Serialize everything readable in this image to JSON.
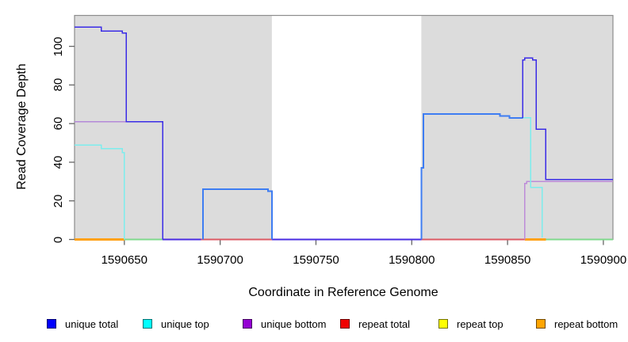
{
  "axes": {
    "xlabel": "Coordinate in Reference Genome",
    "ylabel": "Read Coverage Depth"
  },
  "legend": {
    "items": [
      {
        "label": "unique total",
        "color": "#0000FF"
      },
      {
        "label": "unique top",
        "color": "#00FFFF"
      },
      {
        "label": "unique bottom",
        "color": "#9400D3"
      },
      {
        "label": "repeat total",
        "color": "#F00000"
      },
      {
        "label": "repeat top",
        "color": "#FFFF00"
      },
      {
        "label": "repeat bottom",
        "color": "#FFA500"
      }
    ]
  },
  "chart_data": {
    "type": "line",
    "step": true,
    "title": "",
    "xlabel": "Coordinate in Reference Genome",
    "ylabel": "Read Coverage Depth",
    "xlim": [
      1590624,
      1590905
    ],
    "ylim": [
      0,
      116
    ],
    "xticks": [
      1590650,
      1590700,
      1590750,
      1590800,
      1590850,
      1590900
    ],
    "yticks": [
      0,
      20,
      40,
      60,
      80,
      100
    ],
    "grid": false,
    "legend_position": "bottom",
    "shade_color": "#DCDCDC",
    "frame_color": "#8C8C8C",
    "tick_color": "#666666",
    "shaded_regions": [
      {
        "from": 1590624,
        "to": 1590727
      },
      {
        "from": 1590805,
        "to": 1590905
      }
    ],
    "series": [
      {
        "name": "unique total",
        "color": "#0000FF",
        "step_points": [
          [
            1590624,
            110
          ],
          [
            1590638,
            108
          ],
          [
            1590649,
            107
          ],
          [
            1590651,
            61
          ],
          [
            1590670,
            0
          ],
          [
            1590691,
            26
          ],
          [
            1590725,
            25
          ],
          [
            1590727,
            0
          ],
          [
            1590805,
            37
          ],
          [
            1590807,
            65
          ],
          [
            1590846,
            64
          ],
          [
            1590851,
            63
          ],
          [
            1590858,
            93
          ],
          [
            1590859,
            94
          ],
          [
            1590863,
            93
          ],
          [
            1590865,
            57
          ],
          [
            1590870,
            31
          ],
          [
            1590905,
            31
          ]
        ]
      },
      {
        "name": "unique top",
        "color": "#00FFFF",
        "step_points": [
          [
            1590624,
            49
          ],
          [
            1590638,
            47
          ],
          [
            1590649,
            45
          ],
          [
            1590650,
            0
          ],
          [
            1590691,
            26
          ],
          [
            1590727,
            0
          ],
          [
            1590805,
            37
          ],
          [
            1590807,
            65
          ],
          [
            1590846,
            64
          ],
          [
            1590851,
            63
          ],
          [
            1590862,
            27
          ],
          [
            1590868,
            0
          ],
          [
            1590905,
            0
          ]
        ]
      },
      {
        "name": "unique bottom",
        "color": "#9400D3",
        "step_points": [
          [
            1590624,
            61
          ],
          [
            1590670,
            0
          ],
          [
            1590859,
            30
          ],
          [
            1590905,
            30
          ]
        ]
      },
      {
        "name": "repeat total",
        "color": "#F00000",
        "step_points": [
          [
            1590624,
            0
          ],
          [
            1590905,
            0
          ]
        ]
      },
      {
        "name": "repeat top",
        "color": "#FFFF00",
        "step_points": [
          [
            1590624,
            0
          ],
          [
            1590905,
            0
          ]
        ]
      },
      {
        "name": "repeat bottom",
        "color": "#FFA500",
        "step_points": [
          [
            1590624,
            0
          ],
          [
            1590905,
            0
          ]
        ]
      }
    ],
    "visible_polylines": [
      {
        "name": "baseline-orange-left",
        "color": "#FFA217",
        "width": 3,
        "points": [
          [
            1590624,
            0
          ],
          [
            1590650,
            0
          ]
        ]
      },
      {
        "name": "baseline-green-left",
        "color": "#7FD98C",
        "width": 2,
        "points": [
          [
            1590650,
            0
          ],
          [
            1590670,
            0
          ]
        ]
      },
      {
        "name": "baseline-blueviolet-left",
        "color": "#4A2BE2",
        "width": 2,
        "points": [
          [
            1590670,
            0
          ],
          [
            1590690,
            0
          ]
        ]
      },
      {
        "name": "baseline-red-left",
        "color": "#DC5A64",
        "width": 2,
        "points": [
          [
            1590690,
            0
          ],
          [
            1590727,
            0
          ]
        ]
      },
      {
        "name": "baseline-blueviolet-gap",
        "color": "#4A2BE2",
        "width": 2,
        "points": [
          [
            1590727,
            0
          ],
          [
            1590805,
            0
          ]
        ]
      },
      {
        "name": "baseline-red-right",
        "color": "#DC5A64",
        "width": 2,
        "points": [
          [
            1590805,
            0
          ],
          [
            1590859,
            0
          ]
        ]
      },
      {
        "name": "baseline-orange-right",
        "color": "#FFA217",
        "width": 3,
        "points": [
          [
            1590859,
            0
          ],
          [
            1590870,
            0
          ]
        ]
      },
      {
        "name": "baseline-green-right",
        "color": "#7FD98C",
        "width": 2,
        "points": [
          [
            1590870,
            0
          ],
          [
            1590905,
            0
          ]
        ]
      },
      {
        "name": "unique-bottom-left",
        "color": "#B389D8",
        "width": 1.5,
        "points": [
          [
            1590624,
            61
          ],
          [
            1590651,
            61
          ]
        ]
      },
      {
        "name": "unique-bottom-right",
        "color": "#BD8BD9",
        "width": 1.5,
        "points": [
          [
            1590859,
            0
          ],
          [
            1590859,
            29
          ],
          [
            1590860,
            29
          ],
          [
            1590860,
            30
          ],
          [
            1590905,
            30
          ]
        ]
      },
      {
        "name": "unique-top-left",
        "color": "#7DEDED",
        "width": 1.5,
        "points": [
          [
            1590624,
            49
          ],
          [
            1590638,
            49
          ],
          [
            1590638,
            47
          ],
          [
            1590649,
            47
          ],
          [
            1590649,
            45
          ],
          [
            1590650,
            45
          ],
          [
            1590650,
            0
          ]
        ]
      },
      {
        "name": "unique-top-right",
        "color": "#7DEDED",
        "width": 1.5,
        "points": [
          [
            1590858,
            63
          ],
          [
            1590862,
            63
          ],
          [
            1590862,
            27
          ],
          [
            1590868,
            27
          ],
          [
            1590868,
            1
          ]
        ]
      },
      {
        "name": "total-and-top-box",
        "color": "#3E7DF2",
        "width": 2,
        "points": [
          [
            1590691,
            0
          ],
          [
            1590691,
            26
          ],
          [
            1590725,
            26
          ],
          [
            1590725,
            25
          ],
          [
            1590727,
            25
          ],
          [
            1590727,
            0
          ]
        ]
      },
      {
        "name": "total-and-top-right",
        "color": "#3E7DF2",
        "width": 2,
        "points": [
          [
            1590805,
            0
          ],
          [
            1590805,
            37
          ],
          [
            1590806,
            37
          ],
          [
            1590806,
            65
          ],
          [
            1590846,
            65
          ],
          [
            1590846,
            64
          ],
          [
            1590851,
            64
          ],
          [
            1590851,
            63
          ],
          [
            1590858,
            63
          ]
        ]
      },
      {
        "name": "unique-total-left",
        "color": "#3A2BE6",
        "width": 1.5,
        "points": [
          [
            1590624,
            110
          ],
          [
            1590638,
            110
          ],
          [
            1590638,
            108
          ],
          [
            1590649,
            108
          ],
          [
            1590649,
            107
          ],
          [
            1590651,
            107
          ],
          [
            1590651,
            61
          ],
          [
            1590670,
            61
          ],
          [
            1590670,
            0
          ]
        ]
      },
      {
        "name": "unique-total-right",
        "color": "#3A2BE6",
        "width": 1.5,
        "points": [
          [
            1590858,
            63
          ],
          [
            1590858,
            93
          ],
          [
            1590859,
            93
          ],
          [
            1590859,
            94
          ],
          [
            1590863,
            94
          ],
          [
            1590863,
            93
          ],
          [
            1590865,
            93
          ],
          [
            1590865,
            57
          ],
          [
            1590870,
            57
          ],
          [
            1590870,
            31
          ],
          [
            1590905,
            31
          ]
        ]
      }
    ]
  }
}
